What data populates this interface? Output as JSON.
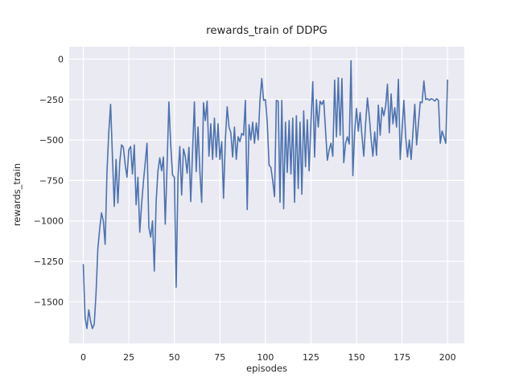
{
  "figure": {
    "title": "rewards_train of DDPG",
    "xlabel": "episodes",
    "ylabel": "rewards_train"
  },
  "chart_data": {
    "type": "line",
    "title": "rewards_train of DDPG",
    "xlabel": "episodes",
    "ylabel": "rewards_train",
    "x_ticks": [
      0,
      25,
      50,
      75,
      100,
      125,
      150,
      175,
      200
    ],
    "y_ticks": [
      0,
      -250,
      -500,
      -750,
      -1000,
      -1250,
      -1500
    ],
    "xlim": [
      -10,
      210
    ],
    "ylim": [
      -1760,
      80
    ],
    "grid": true,
    "legend": false,
    "style": {
      "figure_bg": "#ffffff",
      "plot_bg": "#eaeaf2",
      "grid_color": "#ffffff",
      "text_color": "#262626",
      "line_color": "#4c72b0"
    },
    "series": [
      {
        "name": "rewards_train",
        "color": "#4c72b0",
        "x_start": 0,
        "x_step": 1,
        "values": [
          -1270,
          -1600,
          -1665,
          -1550,
          -1620,
          -1665,
          -1640,
          -1450,
          -1170,
          -1050,
          -950,
          -1000,
          -1145,
          -700,
          -450,
          -280,
          -600,
          -910,
          -620,
          -890,
          -640,
          -530,
          -545,
          -650,
          -730,
          -560,
          -540,
          -710,
          -530,
          -900,
          -730,
          -1070,
          -900,
          -760,
          -640,
          -520,
          -1040,
          -1100,
          -1000,
          -1310,
          -880,
          -690,
          -610,
          -690,
          -605,
          -1020,
          -660,
          -265,
          -530,
          -715,
          -730,
          -1410,
          -730,
          -540,
          -840,
          -555,
          -600,
          -705,
          -545,
          -880,
          -570,
          -265,
          -695,
          -420,
          -690,
          -885,
          -270,
          -380,
          -260,
          -600,
          -400,
          -620,
          -365,
          -605,
          -400,
          -620,
          -510,
          -860,
          -500,
          -295,
          -420,
          -455,
          -605,
          -420,
          -620,
          -480,
          -510,
          -460,
          -470,
          -255,
          -930,
          -405,
          -500,
          -390,
          -520,
          -395,
          -500,
          -255,
          -120,
          -255,
          -250,
          -390,
          -655,
          -670,
          -750,
          -850,
          -255,
          -260,
          -885,
          -255,
          -925,
          -390,
          -700,
          -380,
          -710,
          -365,
          -885,
          -350,
          -800,
          -390,
          -835,
          -320,
          -665,
          -375,
          -690,
          -390,
          -140,
          -605,
          -250,
          -420,
          -260,
          -280,
          -255,
          -440,
          -625,
          -560,
          -520,
          -600,
          -130,
          -480,
          -115,
          -470,
          -120,
          -640,
          -520,
          -480,
          -525,
          -10,
          -720,
          -450,
          -305,
          -445,
          -330,
          -475,
          -600,
          -400,
          -240,
          -350,
          -490,
          -600,
          -450,
          -595,
          -285,
          -470,
          -300,
          -350,
          -290,
          -155,
          -455,
          -215,
          -400,
          -300,
          -420,
          -125,
          -620,
          -440,
          -255,
          -480,
          -605,
          -500,
          -620,
          -450,
          -280,
          -530,
          -400,
          -265,
          -270,
          -135,
          -250,
          -245,
          -255,
          -245,
          -250,
          -260,
          -245,
          -255,
          -520,
          -445,
          -480,
          -520,
          -130
        ]
      }
    ]
  }
}
